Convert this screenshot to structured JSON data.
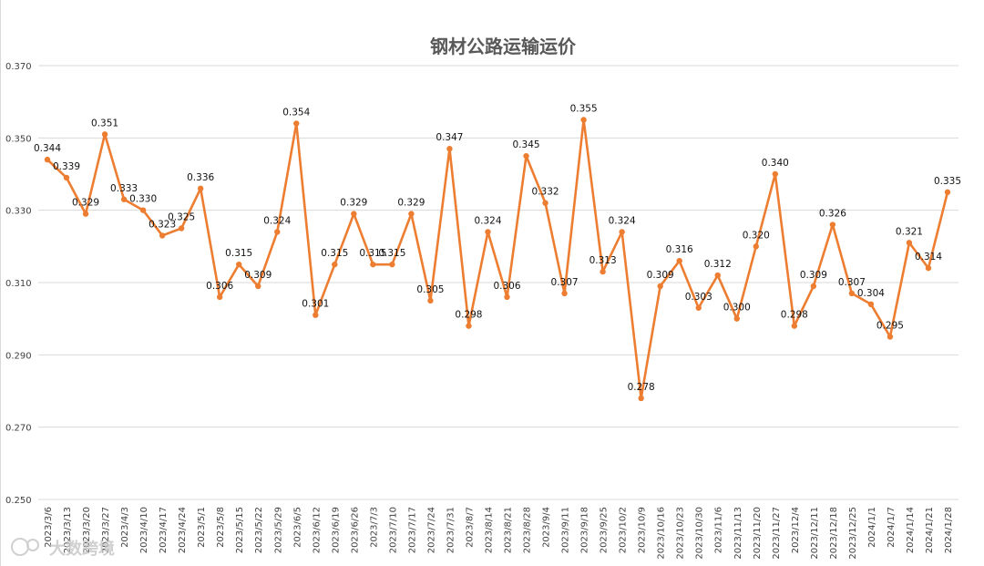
{
  "chart_data": {
    "type": "line",
    "title": "钢材公路运输运价",
    "xlabel": "",
    "ylabel": "",
    "ylim": [
      0.25,
      0.37
    ],
    "yticks": [
      "0.250",
      "0.270",
      "0.290",
      "0.310",
      "0.330",
      "0.350",
      "0.370"
    ],
    "grid": true,
    "legend": "none",
    "series_color": "#ED7D31",
    "categories": [
      "2023/3/6",
      "2023/3/13",
      "2023/3/20",
      "2023/3/27",
      "2023/4/3",
      "2023/4/10",
      "2023/4/17",
      "2023/4/24",
      "2023/5/1",
      "2023/5/8",
      "2023/5/15",
      "2023/5/22",
      "2023/5/29",
      "2023/6/5",
      "2023/6/12",
      "2023/6/19",
      "2023/6/26",
      "2023/7/3",
      "2023/7/10",
      "2023/7/17",
      "2023/7/24",
      "2023/7/31",
      "2023/8/7",
      "2023/8/14",
      "2023/8/21",
      "2023/8/28",
      "2023/9/4",
      "2023/9/11",
      "2023/9/18",
      "2023/9/25",
      "2023/10/2",
      "2023/10/9",
      "2023/10/16",
      "2023/10/23",
      "2023/10/30",
      "2023/11/6",
      "2023/11/13",
      "2023/11/20",
      "2023/11/27",
      "2023/12/4",
      "2023/12/11",
      "2023/12/18",
      "2023/12/25",
      "2024/1/1",
      "2024/1/7",
      "2024/1/14",
      "2024/1/21",
      "2024/1/28"
    ],
    "values": [
      0.344,
      0.339,
      0.329,
      0.351,
      0.333,
      0.33,
      0.323,
      0.325,
      0.336,
      0.306,
      0.315,
      0.309,
      0.324,
      0.354,
      0.301,
      0.315,
      0.329,
      0.315,
      0.315,
      0.329,
      0.305,
      0.347,
      0.298,
      0.324,
      0.306,
      0.345,
      0.332,
      0.307,
      0.355,
      0.313,
      0.324,
      0.278,
      0.309,
      0.316,
      0.303,
      0.312,
      0.3,
      0.32,
      0.34,
      0.298,
      0.309,
      0.326,
      0.307,
      0.304,
      0.295,
      0.321,
      0.314,
      0.335
    ],
    "data_labels": [
      "0.344",
      "0.339",
      "0.329",
      "0.351",
      "0.333",
      "0.330",
      "0.323",
      "0.325",
      "0.336",
      "0.306",
      "0.315",
      "0.309",
      "0.324",
      "0.354",
      "0.301",
      "0.315",
      "0.329",
      "0.315",
      "0.315",
      "0.329",
      "0.305",
      "0.347",
      "0.298",
      "0.324",
      "0.306",
      "0.345",
      "0.332",
      "0.307",
      "0.355",
      "0.313",
      "0.324",
      "0.278",
      "0.309",
      "0.316",
      "0.303",
      "0.312",
      "0.300",
      "0.320",
      "0.340",
      "0.298",
      "0.309",
      "0.326",
      "0.307",
      "0.304",
      "0.295",
      "0.321",
      "0.314",
      "0.335"
    ]
  },
  "watermark": {
    "text": "大数跨境",
    "icon": "brand-logo-icon"
  }
}
